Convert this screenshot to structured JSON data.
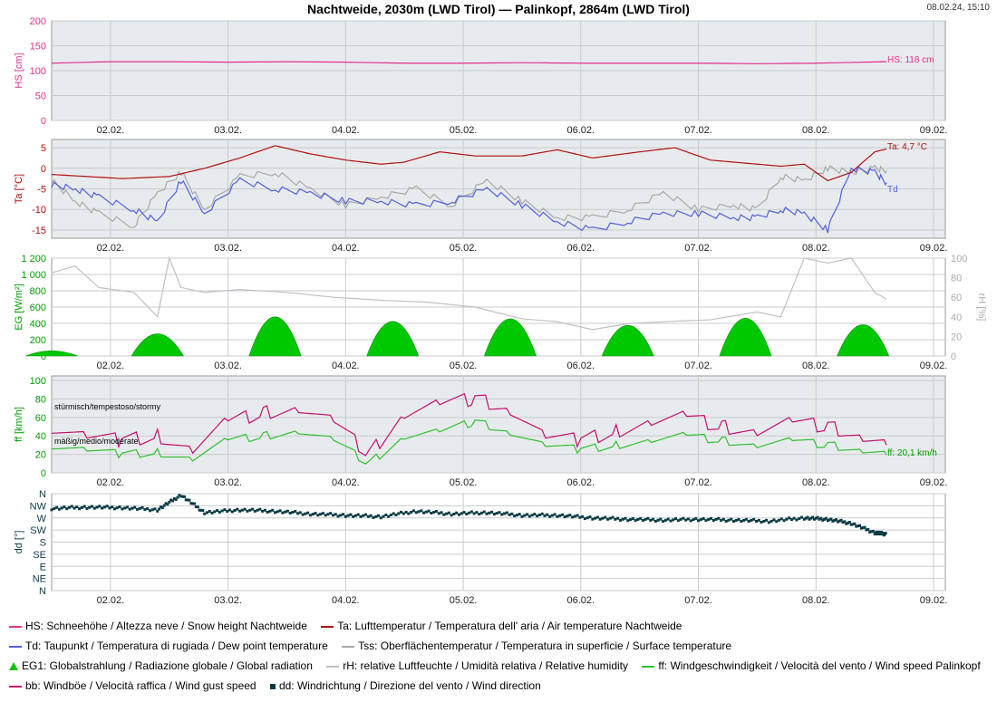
{
  "title": "Nachtweide, 2030m (LWD Tirol) — Palinkopf, 2864m (LWD Tirol)",
  "timestamp": "08.02.24, 15:10",
  "colors": {
    "snow": "#e0308c",
    "air": "#b01010",
    "dew": "#5060d8",
    "surface": "#a8a8a8",
    "radiation": "#00c800",
    "humidity": "#c0c0c8",
    "wind": "#30c030",
    "gust": "#c01070",
    "winddir": "#0d3b46",
    "panel_bg": "#e8ebed",
    "grid": "#c8cbce"
  },
  "chart_data": [
    {
      "type": "line",
      "id": "snow",
      "ylabel": "HS [cm]",
      "ylim": [
        0,
        200
      ],
      "yticks": [
        "0",
        "50",
        "100",
        "150",
        "200"
      ],
      "ytick_values": [
        0,
        50,
        100,
        150,
        200
      ],
      "x_tick_labels": [
        "02.02.",
        "03.02.",
        "04.02.",
        "05.02.",
        "06.02.",
        "07.02.",
        "08.02.",
        "09.02."
      ],
      "x_range": [
        "01.02. 12:00",
        "09.02. 06:00"
      ],
      "series": [
        {
          "name": "HS",
          "x": [
            0,
            0.5,
            1,
            1.5,
            2,
            2.5,
            3,
            3.5,
            4,
            4.5,
            5,
            5.5,
            6,
            6.5,
            7.1
          ],
          "values": [
            115,
            118,
            118,
            117,
            118,
            117,
            115,
            115,
            116,
            115,
            115,
            115,
            114,
            115,
            118
          ]
        }
      ],
      "annotation": "HS: 118 cm"
    },
    {
      "type": "line",
      "id": "temperature",
      "ylabel": "Ta [°C]",
      "ylim": [
        -17,
        7
      ],
      "yticks": [
        "5",
        "0",
        "-5",
        "-10",
        "-15"
      ],
      "ytick_values": [
        5,
        0,
        -5,
        -10,
        -15
      ],
      "x_tick_labels": [
        "02.02.",
        "03.02.",
        "04.02.",
        "05.02.",
        "06.02.",
        "07.02.",
        "08.02.",
        "09.02."
      ],
      "series": [
        {
          "name": "Ta",
          "x": [
            0,
            0.3,
            0.6,
            1.0,
            1.3,
            1.6,
            1.9,
            2.2,
            2.5,
            2.8,
            3.0,
            3.3,
            3.6,
            4.0,
            4.3,
            4.6,
            5.0,
            5.3,
            5.6,
            6.0,
            6.2,
            6.4,
            6.6,
            6.8,
            7.0,
            7.1
          ],
          "values": [
            -1.5,
            -2,
            -2.5,
            -2,
            0,
            2.5,
            5.5,
            3.5,
            2,
            1,
            1.5,
            4,
            3,
            3,
            4.5,
            2.5,
            4,
            5,
            2,
            1,
            0.5,
            1,
            -3,
            -1,
            4,
            4.7
          ]
        },
        {
          "name": "Td",
          "x": [
            0,
            0.2,
            0.4,
            0.7,
            0.9,
            1.1,
            1.3,
            1.6,
            1.9,
            2.2,
            2.5,
            2.8,
            3.1,
            3.4,
            3.7,
            4.0,
            4.3,
            4.6,
            4.9,
            5.2,
            5.5,
            5.8,
            6.0,
            6.2,
            6.4,
            6.6,
            6.8,
            7.0,
            7.1
          ],
          "values": [
            -4,
            -5,
            -7,
            -10,
            -13,
            -3,
            -11,
            -3,
            -5,
            -6,
            -8,
            -8,
            -9,
            -8,
            -5,
            -9,
            -13,
            -15,
            -13,
            -11,
            -11,
            -12,
            -12,
            -10,
            -11,
            -15,
            0,
            -1,
            -3.5
          ]
        },
        {
          "name": "Tss",
          "x": [
            0,
            0.2,
            0.4,
            0.7,
            0.9,
            1.1,
            1.3,
            1.6,
            1.9,
            2.2,
            2.5,
            2.8,
            3.1,
            3.4,
            3.7,
            4.0,
            4.3,
            4.6,
            4.9,
            5.2,
            5.5,
            5.8,
            6.0,
            6.2,
            6.4,
            6.6,
            6.8,
            7.0,
            7.1
          ],
          "values": [
            -3,
            -8,
            -11,
            -14,
            -6,
            -1,
            -10,
            -2,
            -1,
            -5,
            -9,
            -7,
            -5,
            -9,
            -3,
            -8,
            -12,
            -12,
            -10,
            -6,
            -10,
            -9,
            -10,
            -2,
            -3,
            0,
            -1,
            0,
            -0.5
          ]
        }
      ],
      "annotations": [
        "Ta: 4,7 °C",
        "Td"
      ]
    },
    {
      "type": "area",
      "id": "radiation",
      "ylabel": "EG [W/m²]",
      "ylabel2": "rH [%]",
      "ylim": [
        0,
        1200
      ],
      "ylim2": [
        0,
        100
      ],
      "yticks": [
        "0",
        "200",
        "400",
        "600",
        "800",
        "1 000",
        "1 200"
      ],
      "ytick_values": [
        0,
        200,
        400,
        600,
        800,
        1000,
        1200
      ],
      "yticks2": [
        "0",
        "20",
        "40",
        "60",
        "80",
        "100"
      ],
      "ytick2_values": [
        0,
        20,
        40,
        60,
        80,
        100
      ],
      "x_tick_labels": [
        "02.02.",
        "03.02.",
        "04.02.",
        "05.02.",
        "06.02.",
        "07.02.",
        "08.02.",
        "09.02."
      ],
      "series": [
        {
          "name": "EG",
          "peaks": [
            [
              0.0,
              80
            ],
            [
              0.9,
              340
            ],
            [
              1.9,
              600
            ],
            [
              2.9,
              530
            ],
            [
              3.9,
              570
            ],
            [
              4.9,
              470
            ],
            [
              5.9,
              580
            ],
            [
              6.9,
              480
            ]
          ]
        },
        {
          "name": "rH",
          "x": [
            0,
            0.2,
            0.4,
            0.7,
            0.9,
            1.0,
            1.1,
            1.3,
            1.6,
            2.0,
            2.4,
            2.8,
            3.2,
            3.6,
            4.0,
            4.3,
            4.6,
            4.9,
            5.2,
            5.6,
            6.0,
            6.2,
            6.4,
            6.6,
            6.8,
            7.0,
            7.1
          ],
          "values": [
            85,
            92,
            70,
            65,
            40,
            100,
            70,
            65,
            68,
            65,
            60,
            57,
            55,
            50,
            38,
            35,
            27,
            33,
            35,
            37,
            45,
            40,
            100,
            95,
            100,
            65,
            58
          ]
        }
      ]
    },
    {
      "type": "line",
      "id": "wind",
      "ylabel": "ff [km/h]",
      "ylim": [
        0,
        105
      ],
      "yticks": [
        "0",
        "20",
        "40",
        "60",
        "80",
        "100"
      ],
      "ytick_values": [
        0,
        20,
        40,
        60,
        80,
        100
      ],
      "x_tick_labels": [
        "02.02.",
        "03.02.",
        "04.02.",
        "05.02.",
        "06.02.",
        "07.02.",
        "08.02.",
        "09.02."
      ],
      "series": [
        {
          "name": "ff",
          "x": [
            0,
            0.3,
            0.6,
            0.9,
            1.2,
            1.5,
            1.8,
            2.1,
            2.4,
            2.7,
            3.0,
            3.3,
            3.6,
            3.9,
            4.2,
            4.5,
            4.8,
            5.1,
            5.4,
            5.7,
            6.0,
            6.3,
            6.6,
            6.9,
            7.1
          ],
          "values": [
            30,
            25,
            20,
            22,
            15,
            35,
            40,
            45,
            35,
            10,
            40,
            45,
            55,
            45,
            30,
            25,
            30,
            35,
            40,
            35,
            30,
            35,
            30,
            25,
            20
          ]
        },
        {
          "name": "bb",
          "x": [
            0,
            0.3,
            0.6,
            0.9,
            1.2,
            1.5,
            1.8,
            2.1,
            2.4,
            2.7,
            3.0,
            3.3,
            3.6,
            3.9,
            4.2,
            4.5,
            4.8,
            5.1,
            5.4,
            5.7,
            6.0,
            6.3,
            6.6,
            6.9,
            7.1
          ],
          "values": [
            50,
            40,
            35,
            40,
            25,
            55,
            65,
            70,
            55,
            20,
            65,
            75,
            80,
            70,
            40,
            35,
            45,
            55,
            60,
            50,
            45,
            55,
            50,
            40,
            30
          ]
        }
      ],
      "threshold_labels": [
        "stürmisch/tempestoso/stormy",
        "mäßig/medio/moderate"
      ],
      "annotation": "ff: 20,1 km/h"
    },
    {
      "type": "scatter",
      "id": "direction",
      "ylabel": "dd [°]",
      "ylim": [
        0,
        360
      ],
      "yticks": [
        "N",
        "NW",
        "W",
        "SW",
        "S",
        "SE",
        "E",
        "NE",
        "N"
      ],
      "ytick_values": [
        360,
        315,
        270,
        225,
        180,
        135,
        90,
        45,
        0
      ],
      "x_tick_labels": [
        "02.02.",
        "03.02.",
        "04.02.",
        "05.02.",
        "06.02.",
        "07.02.",
        "08.02.",
        "09.02."
      ],
      "series": [
        {
          "name": "dd",
          "x": [
            0,
            0.3,
            0.6,
            0.9,
            1.1,
            1.3,
            1.6,
            1.9,
            2.2,
            2.5,
            2.8,
            3.1,
            3.4,
            3.7,
            4.0,
            4.3,
            4.6,
            4.9,
            5.2,
            5.5,
            5.8,
            6.1,
            6.4,
            6.6,
            6.8,
            7.0,
            7.1
          ],
          "values": [
            305,
            310,
            308,
            300,
            355,
            290,
            300,
            295,
            285,
            280,
            275,
            295,
            285,
            290,
            280,
            280,
            270,
            265,
            262,
            265,
            262,
            258,
            270,
            265,
            250,
            215,
            210
          ]
        }
      ]
    }
  ],
  "legend": [
    [
      "HS: Schneehöhe / Altezza neve / Snow height  Nachtweide",
      "Ta: Lufttemperatur / Temperatura dell' aria / Air temperature  Nachtweide"
    ],
    [
      "Td: Taupunkt / Temperatura di rugiada / Dew point temperature",
      "Tss: Oberflächentemperatur / Temperatura in superficie / Surface temperature"
    ],
    [
      "EG1: Globalstrahlung / Radiazione globale / Global radiation",
      "rH: relative Luftfeuchte / Umidità relativa / Relative humidity",
      "ff: Windgeschwindigkeit / Velocità del vento / Wind speed  Palinkopf"
    ],
    [
      "bb: Windböe / Velocità raffica / Wind gust speed",
      "dd: Windrichtung / Direzione del vento / Wind direction"
    ]
  ]
}
